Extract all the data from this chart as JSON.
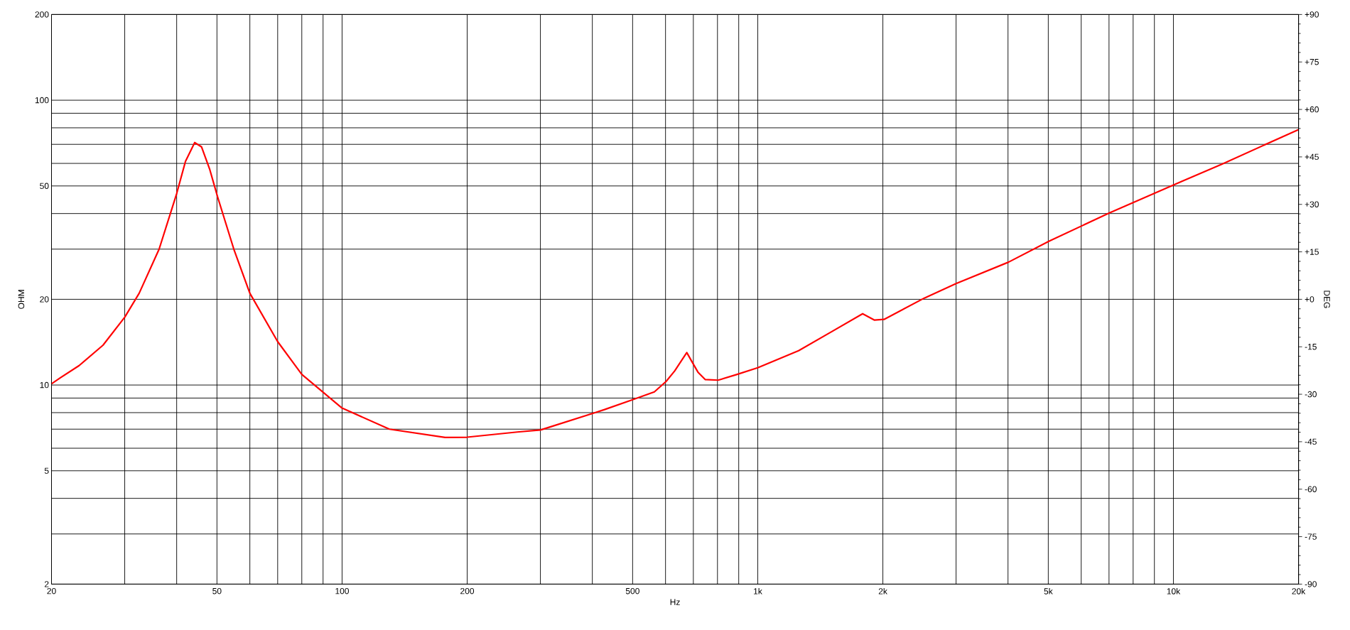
{
  "chart_data": {
    "type": "line",
    "xlabel": "Hz",
    "ylabel": "OHM",
    "y2label": "DEG",
    "log": "xy",
    "grid": true,
    "xlim": [
      20,
      20000
    ],
    "ylim": [
      2,
      200
    ],
    "y2lim": [
      -90,
      90
    ],
    "xticks": [
      20,
      {
        "value": 30,
        "label": null
      },
      {
        "value": 40,
        "label": null
      },
      50,
      {
        "value": 60,
        "label": null
      },
      {
        "value": 70,
        "label": null
      },
      {
        "value": 80,
        "label": null
      },
      {
        "value": 90,
        "label": null
      },
      100,
      200,
      {
        "value": 300,
        "label": null
      },
      {
        "value": 400,
        "label": null
      },
      500,
      {
        "value": 600,
        "label": null
      },
      {
        "value": 700,
        "label": null
      },
      {
        "value": 800,
        "label": null
      },
      {
        "value": 900,
        "label": null
      },
      {
        "value": 1000,
        "label": "1k"
      },
      {
        "value": 2000,
        "label": "2k"
      },
      {
        "value": 3000,
        "label": null
      },
      {
        "value": 4000,
        "label": null
      },
      {
        "value": 5000,
        "label": "5k"
      },
      {
        "value": 6000,
        "label": null
      },
      {
        "value": 7000,
        "label": null
      },
      {
        "value": 8000,
        "label": null
      },
      {
        "value": 9000,
        "label": null
      },
      {
        "value": 10000,
        "label": "10k"
      },
      {
        "value": 20000,
        "label": "20k"
      }
    ],
    "yticks": [
      2,
      {
        "value": 3,
        "label": null
      },
      {
        "value": 4,
        "label": null
      },
      5,
      {
        "value": 6,
        "label": null
      },
      {
        "value": 7,
        "label": null
      },
      {
        "value": 8,
        "label": null
      },
      {
        "value": 9,
        "label": null
      },
      10,
      20,
      {
        "value": 30,
        "label": null
      },
      {
        "value": 40,
        "label": null
      },
      50,
      {
        "value": 60,
        "label": null
      },
      {
        "value": 70,
        "label": null
      },
      {
        "value": 80,
        "label": null
      },
      {
        "value": 90,
        "label": null
      },
      100,
      200
    ],
    "y2ticks": [
      -90,
      -75,
      -60,
      -45,
      -30,
      -15,
      {
        "value": 0,
        "label": "+0"
      },
      {
        "value": 15,
        "label": "+15"
      },
      {
        "value": 30,
        "label": "+30"
      },
      {
        "value": 45,
        "label": "+45"
      },
      {
        "value": 60,
        "label": "+60"
      },
      {
        "value": 75,
        "label": "+75"
      },
      {
        "value": 90,
        "label": "+90"
      }
    ],
    "x": [
      20,
      21,
      23.3,
      26.6,
      30,
      32.5,
      36.3,
      40,
      42,
      44.2,
      45.9,
      48,
      50.2,
      54.9,
      60,
      70,
      80,
      100,
      130,
      177,
      200,
      264,
      300,
      406,
      428,
      500,
      564,
      602,
      631,
      675,
      694,
      718,
      748,
      803,
      892,
      1000,
      1254,
      1507,
      1788,
      1910,
      2013,
      2517,
      3000,
      4010,
      5024,
      7017,
      10000,
      13100,
      20000
    ],
    "series": [
      {
        "color": "#ff0000",
        "values": [
          10.1,
          10.6,
          11.7,
          13.8,
          17.3,
          21,
          30,
          47,
          61,
          71,
          68.6,
          57.4,
          45.7,
          30,
          21,
          14.2,
          10.9,
          8.3,
          7.0,
          6.55,
          6.56,
          6.84,
          6.95,
          8.0,
          8.2,
          8.88,
          9.46,
          10.3,
          11.2,
          13.0,
          12.1,
          11.1,
          10.45,
          10.4,
          10.9,
          11.5,
          13.2,
          15.4,
          17.8,
          16.9,
          17.0,
          20.2,
          22.7,
          27.0,
          32.0,
          40.2,
          50.4,
          59.7,
          78.9
        ]
      }
    ]
  }
}
